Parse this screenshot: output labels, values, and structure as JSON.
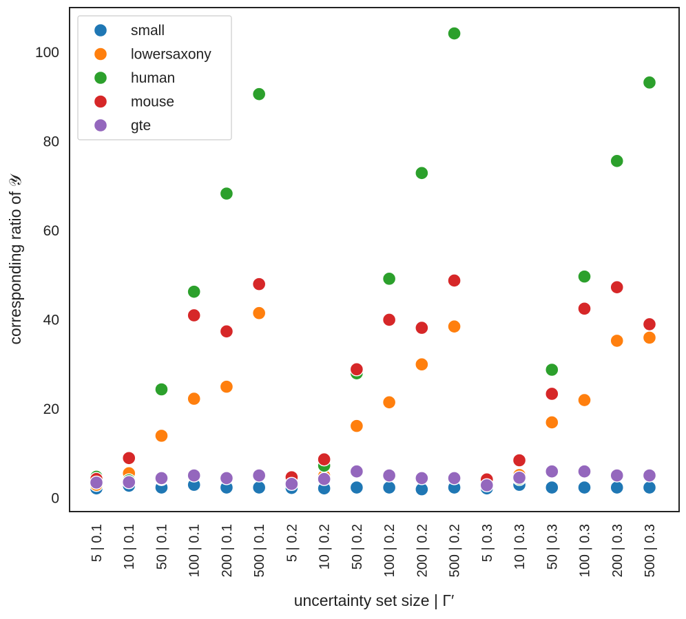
{
  "chart_data": {
    "type": "scatter",
    "title": "",
    "xlabel": "uncertainty set size | Γ′",
    "ylabel": "corresponding ratio of 𝒴",
    "ylim": [
      -3,
      110
    ],
    "yticks": [
      0,
      20,
      40,
      60,
      80,
      100
    ],
    "ytick_labels": [
      "0",
      "20",
      "40",
      "60",
      "80",
      "100"
    ],
    "grid": false,
    "legend_position": "top-left",
    "categories": [
      "5 | 0.1",
      "10 | 0.1",
      "50 | 0.1",
      "100 | 0.1",
      "200 | 0.1",
      "500 | 0.1",
      "5 | 0.2",
      "10 | 0.2",
      "50 | 0.2",
      "100 | 0.2",
      "200 | 0.2",
      "500 | 0.2",
      "5 | 0.3",
      "10 | 0.3",
      "50 | 0.3",
      "100 | 0.3",
      "200 | 0.3",
      "500 | 0.3"
    ],
    "series": [
      {
        "name": "small",
        "color": "#1f77b4",
        "values": [
          2.2,
          2.8,
          2.4,
          3.0,
          2.4,
          2.4,
          2.3,
          2.2,
          2.4,
          2.4,
          2.0,
          2.4,
          2.2,
          3.0,
          2.4,
          2.4,
          2.4,
          2.4
        ]
      },
      {
        "name": "lowersaxony",
        "color": "#ff7f0e",
        "values": [
          3.0,
          5.6,
          14.0,
          22.3,
          25.0,
          41.5,
          3.5,
          5.0,
          16.2,
          21.5,
          30.0,
          38.5,
          3.0,
          5.2,
          17.0,
          22.0,
          35.3,
          36.0
        ]
      },
      {
        "name": "human",
        "color": "#2ca02c",
        "values": [
          4.8,
          4.0,
          24.4,
          46.3,
          68.3,
          90.6,
          3.8,
          7.3,
          28.0,
          49.2,
          72.9,
          104.2,
          3.3,
          4.3,
          28.8,
          49.7,
          75.6,
          93.2
        ]
      },
      {
        "name": "mouse",
        "color": "#d62728",
        "values": [
          4.3,
          9.0,
          4.3,
          41.0,
          37.4,
          48.0,
          4.7,
          8.7,
          28.9,
          40.0,
          38.2,
          48.8,
          4.2,
          8.5,
          23.4,
          42.5,
          47.3,
          39.0
        ]
      },
      {
        "name": "gte",
        "color": "#9467bd",
        "values": [
          3.5,
          3.6,
          4.5,
          5.1,
          4.5,
          5.1,
          3.2,
          4.3,
          6.0,
          5.1,
          4.5,
          4.5,
          2.9,
          4.6,
          6.0,
          6.0,
          5.1,
          5.1
        ]
      }
    ]
  }
}
